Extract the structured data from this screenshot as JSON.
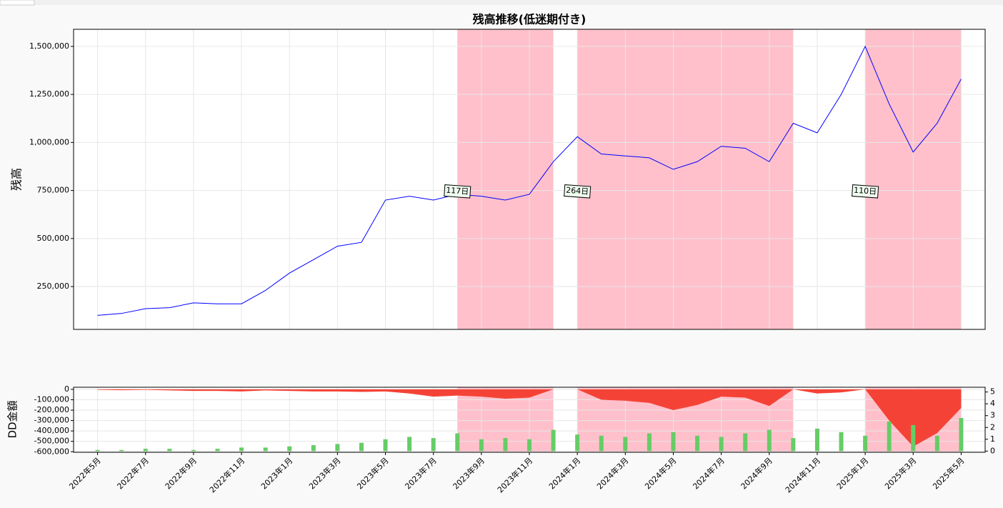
{
  "chart_data": [
    {
      "type": "line",
      "title": "残高推移(低迷期付き)",
      "y_label": "残高",
      "grid": true,
      "x": [
        "2022-05",
        "2022-06",
        "2022-07",
        "2022-08",
        "2022-09",
        "2022-10",
        "2022-11",
        "2022-12",
        "2023-01",
        "2023-02",
        "2023-03",
        "2023-04",
        "2023-05",
        "2023-06",
        "2023-07",
        "2023-08",
        "2023-09",
        "2023-10",
        "2023-11",
        "2023-12",
        "2024-01",
        "2024-02",
        "2024-03",
        "2024-04",
        "2024-05",
        "2024-06",
        "2024-07",
        "2024-08",
        "2024-09",
        "2024-10",
        "2024-11",
        "2024-12",
        "2025-01",
        "2025-02",
        "2025-03",
        "2025-04",
        "2025-05"
      ],
      "series": [
        {
          "color": "#0000ff",
          "values": [
            100000,
            110000,
            135000,
            140000,
            165000,
            160000,
            160000,
            230000,
            320000,
            390000,
            460000,
            480000,
            700000,
            720000,
            700000,
            730000,
            720000,
            700000,
            730000,
            900000,
            1030000,
            940000,
            930000,
            920000,
            860000,
            900000,
            980000,
            970000,
            900000,
            1100000,
            1050000,
            1250000,
            1500000,
            1200000,
            950000,
            1100000,
            1330000
          ]
        }
      ],
      "periods": [
        {
          "start": "2023-08",
          "end": "2023-12",
          "label": "117日"
        },
        {
          "start": "2024-01",
          "end": "2024-10",
          "label": "264日"
        },
        {
          "start": "2025-01",
          "end": "2025-05",
          "label": "110日"
        }
      ],
      "period_color": "#ffc0cb",
      "xlim": [
        "2022-04",
        "2025-06"
      ],
      "xticks": [
        "2022-05",
        "2022-07",
        "2022-09",
        "2022-11",
        "2023-01",
        "2023-03",
        "2023-05",
        "2023-07",
        "2023-09",
        "2023-11",
        "2024-01",
        "2024-03",
        "2024-05",
        "2024-07",
        "2024-09",
        "2024-11",
        "2025-01",
        "2025-03",
        "2025-05"
      ],
      "ylim": [
        27000,
        1589000
      ],
      "yticks": [
        {
          "value": 250000,
          "label": "250,000"
        },
        {
          "value": 500000,
          "label": "500,000"
        },
        {
          "value": 750000,
          "label": "750,000"
        },
        {
          "value": 1000000,
          "label": "1,000,000"
        },
        {
          "value": 1250000,
          "label": "1,250,000"
        },
        {
          "value": 1500000,
          "label": "1,500,000"
        }
      ]
    },
    {
      "type": "area",
      "y_label": "DD金額",
      "grid": true,
      "x": [
        "2022-05",
        "2022-06",
        "2022-07",
        "2022-08",
        "2022-09",
        "2022-10",
        "2022-11",
        "2022-12",
        "2023-01",
        "2023-02",
        "2023-03",
        "2023-04",
        "2023-05",
        "2023-06",
        "2023-07",
        "2023-08",
        "2023-09",
        "2023-10",
        "2023-11",
        "2023-12",
        "2024-01",
        "2024-02",
        "2024-03",
        "2024-04",
        "2024-05",
        "2024-06",
        "2024-07",
        "2024-08",
        "2024-09",
        "2024-10",
        "2024-11",
        "2024-12",
        "2025-01",
        "2025-02",
        "2025-03",
        "2025-04",
        "2025-05"
      ],
      "series": [
        {
          "color": "#f44336",
          "values": [
            -5000,
            -8000,
            -5000,
            -10000,
            -15000,
            -15000,
            -20000,
            -10000,
            -15000,
            -20000,
            -20000,
            -25000,
            -20000,
            -40000,
            -70000,
            -60000,
            -70000,
            -90000,
            -80000,
            0,
            0,
            -100000,
            -110000,
            -130000,
            -200000,
            -150000,
            -70000,
            -80000,
            -160000,
            0,
            -40000,
            -30000,
            0,
            -300000,
            -550000,
            -420000,
            -180000
          ]
        },
        {
          "color": "#66cc66",
          "axis": "y2",
          "values": [
            0.1,
            0.1,
            0.2,
            0.2,
            0.1,
            0.2,
            0.3,
            0.3,
            0.4,
            0.5,
            0.6,
            0.7,
            1.0,
            1.2,
            1.1,
            1.5,
            1.0,
            1.1,
            1.0,
            1.8,
            1.4,
            1.3,
            1.2,
            1.5,
            1.6,
            1.3,
            1.2,
            1.5,
            1.8,
            1.1,
            1.9,
            1.6,
            1.3,
            2.5,
            2.2,
            1.3,
            2.8
          ]
        }
      ],
      "xlim": [
        "2022-04",
        "2025-06"
      ],
      "xticks": [
        {
          "value": "2022-05",
          "label": "2022年5月"
        },
        {
          "value": "2022-07",
          "label": "2022年7月"
        },
        {
          "value": "2022-09",
          "label": "2022年9月"
        },
        {
          "value": "2022-11",
          "label": "2022年11月"
        },
        {
          "value": "2023-01",
          "label": "2023年1月"
        },
        {
          "value": "2023-03",
          "label": "2023年3月"
        },
        {
          "value": "2023-05",
          "label": "2023年5月"
        },
        {
          "value": "2023-07",
          "label": "2023年7月"
        },
        {
          "value": "2023-09",
          "label": "2023年9月"
        },
        {
          "value": "2023-11",
          "label": "2023年11月"
        },
        {
          "value": "2024-01",
          "label": "2024年1月"
        },
        {
          "value": "2024-03",
          "label": "2024年3月"
        },
        {
          "value": "2024-05",
          "label": "2024年5月"
        },
        {
          "value": "2024-07",
          "label": "2024年7月"
        },
        {
          "value": "2024-09",
          "label": "2024年9月"
        },
        {
          "value": "2024-11",
          "label": "2024年11月"
        },
        {
          "value": "2025-01",
          "label": "2025年1月"
        },
        {
          "value": "2025-03",
          "label": "2025年3月"
        },
        {
          "value": "2025-05",
          "label": "2025年5月"
        }
      ],
      "ylim": [
        -605000,
        20000
      ],
      "yticks": [
        {
          "value": -600000,
          "label": "-600,000"
        },
        {
          "value": -500000,
          "label": "-500,000"
        },
        {
          "value": -400000,
          "label": "-400,000"
        },
        {
          "value": -300000,
          "label": "-300,000"
        },
        {
          "value": -200000,
          "label": "-200,000"
        },
        {
          "value": -100000,
          "label": "-100,000"
        },
        0
      ],
      "y2lim": [
        -0.1,
        5.4
      ],
      "y2ticks": [
        0,
        1,
        2,
        3,
        4,
        5
      ]
    }
  ]
}
